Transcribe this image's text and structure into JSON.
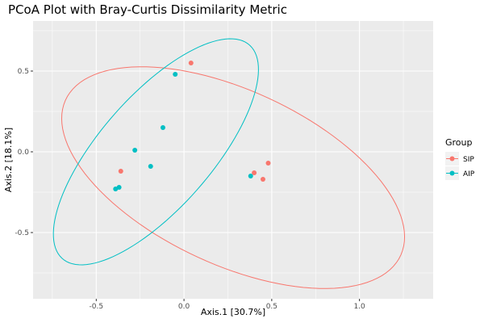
{
  "chart_data": {
    "type": "scatter",
    "title": "PCoA Plot with Bray-Curtis Dissimilarity Metric",
    "xlabel": "Axis.1   [30.7%]",
    "ylabel": "Axis.2   [18.1%]",
    "xlim": [
      -0.86,
      1.42
    ],
    "ylim": [
      -0.91,
      0.81
    ],
    "x_ticks": [
      -0.5,
      0.0,
      0.5,
      1.0
    ],
    "x_tick_labels": [
      "-0.5",
      "0.0",
      "0.5",
      "1.0"
    ],
    "y_ticks": [
      -0.5,
      0.0,
      0.5
    ],
    "y_tick_labels": [
      "-0.5",
      "0.0",
      "0.5"
    ],
    "grid": true,
    "legend": {
      "title": "Group",
      "position": "right"
    },
    "series": [
      {
        "name": "SIP",
        "color": "#F8766D",
        "points": [
          {
            "x": 0.04,
            "y": 0.55
          },
          {
            "x": -0.36,
            "y": -0.12
          },
          {
            "x": 0.4,
            "y": -0.13
          },
          {
            "x": 0.45,
            "y": -0.17
          },
          {
            "x": 0.48,
            "y": -0.07
          }
        ],
        "ellipse": {
          "cx": 0.28,
          "cy": -0.16,
          "rx": 1.07,
          "ry": 0.53,
          "angle_deg": -28
        }
      },
      {
        "name": "AIP",
        "color": "#00BFC4",
        "points": [
          {
            "x": -0.05,
            "y": 0.48
          },
          {
            "x": -0.12,
            "y": 0.15
          },
          {
            "x": -0.28,
            "y": 0.01
          },
          {
            "x": -0.19,
            "y": -0.09
          },
          {
            "x": -0.39,
            "y": -0.23
          },
          {
            "x": -0.37,
            "y": -0.22
          },
          {
            "x": 0.38,
            "y": -0.15
          }
        ],
        "ellipse": {
          "cx": -0.16,
          "cy": 0.0,
          "rx": 0.85,
          "ry": 0.33,
          "angle_deg": 52
        }
      }
    ]
  }
}
